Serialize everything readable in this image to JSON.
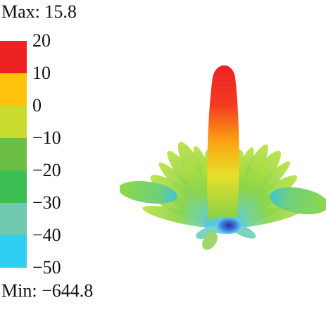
{
  "chart_data": {
    "type": "3d-radiation-pattern",
    "max_label": "Max: 15.8",
    "min_label": "Min: −644.8",
    "colorbar": {
      "ticks": [
        "20",
        "10",
        "0",
        "−10",
        "−20",
        "−30",
        "−40",
        "−50"
      ],
      "colors": [
        "#ee2222",
        "#fec20d",
        "#c7dc2e",
        "#6bbf44",
        "#3cbe52",
        "#6ec9b0",
        "#2ecff0",
        "#3a4ea3"
      ]
    }
  }
}
